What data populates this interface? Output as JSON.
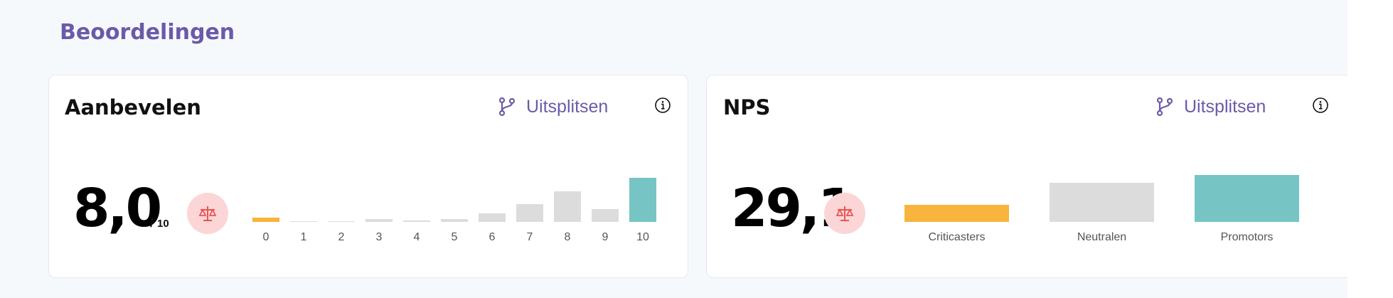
{
  "section": {
    "title": "Beoordelingen"
  },
  "cards": {
    "aanbevelen": {
      "title": "Aanbevelen",
      "split_label": "Uitsplitsen",
      "value": "8,0",
      "scale_sep": "/",
      "scale_max": "10"
    },
    "nps": {
      "title": "NPS",
      "split_label": "Uitsplitsen",
      "value": "29,1"
    }
  },
  "colors": {
    "accent": "#6b5aa8",
    "critic": "#f8b43d",
    "neutral": "#dcdcdc",
    "promoter": "#76c5c4",
    "badge_bg": "#fcd6d6",
    "badge_icon": "#e85555"
  },
  "icons": {
    "split": "branch-icon",
    "info": "info-icon",
    "balance": "balance-scale-icon"
  },
  "chart_data": [
    {
      "type": "bar",
      "categories": [
        "0",
        "1",
        "2",
        "3",
        "4",
        "5",
        "6",
        "7",
        "8",
        "9",
        "10"
      ],
      "values": [
        5,
        1,
        0,
        3,
        2,
        3,
        10,
        21,
        36,
        15,
        52
      ],
      "value_unit": "relative share (estimated)",
      "ylim": [
        0,
        52
      ],
      "highlight": {
        "0": "#f8b43d",
        "10": "#76c5c4"
      },
      "title": "",
      "xlabel": "",
      "ylabel": ""
    },
    {
      "type": "bar",
      "categories": [
        "Criticasters",
        "Neutralen",
        "Promotors"
      ],
      "values": [
        19,
        44,
        53
      ],
      "value_unit": "relative share (estimated)",
      "ylim": [
        0,
        53
      ],
      "colors": [
        "#f8b43d",
        "#dcdcdc",
        "#76c5c4"
      ],
      "title": "",
      "xlabel": "",
      "ylabel": ""
    }
  ]
}
